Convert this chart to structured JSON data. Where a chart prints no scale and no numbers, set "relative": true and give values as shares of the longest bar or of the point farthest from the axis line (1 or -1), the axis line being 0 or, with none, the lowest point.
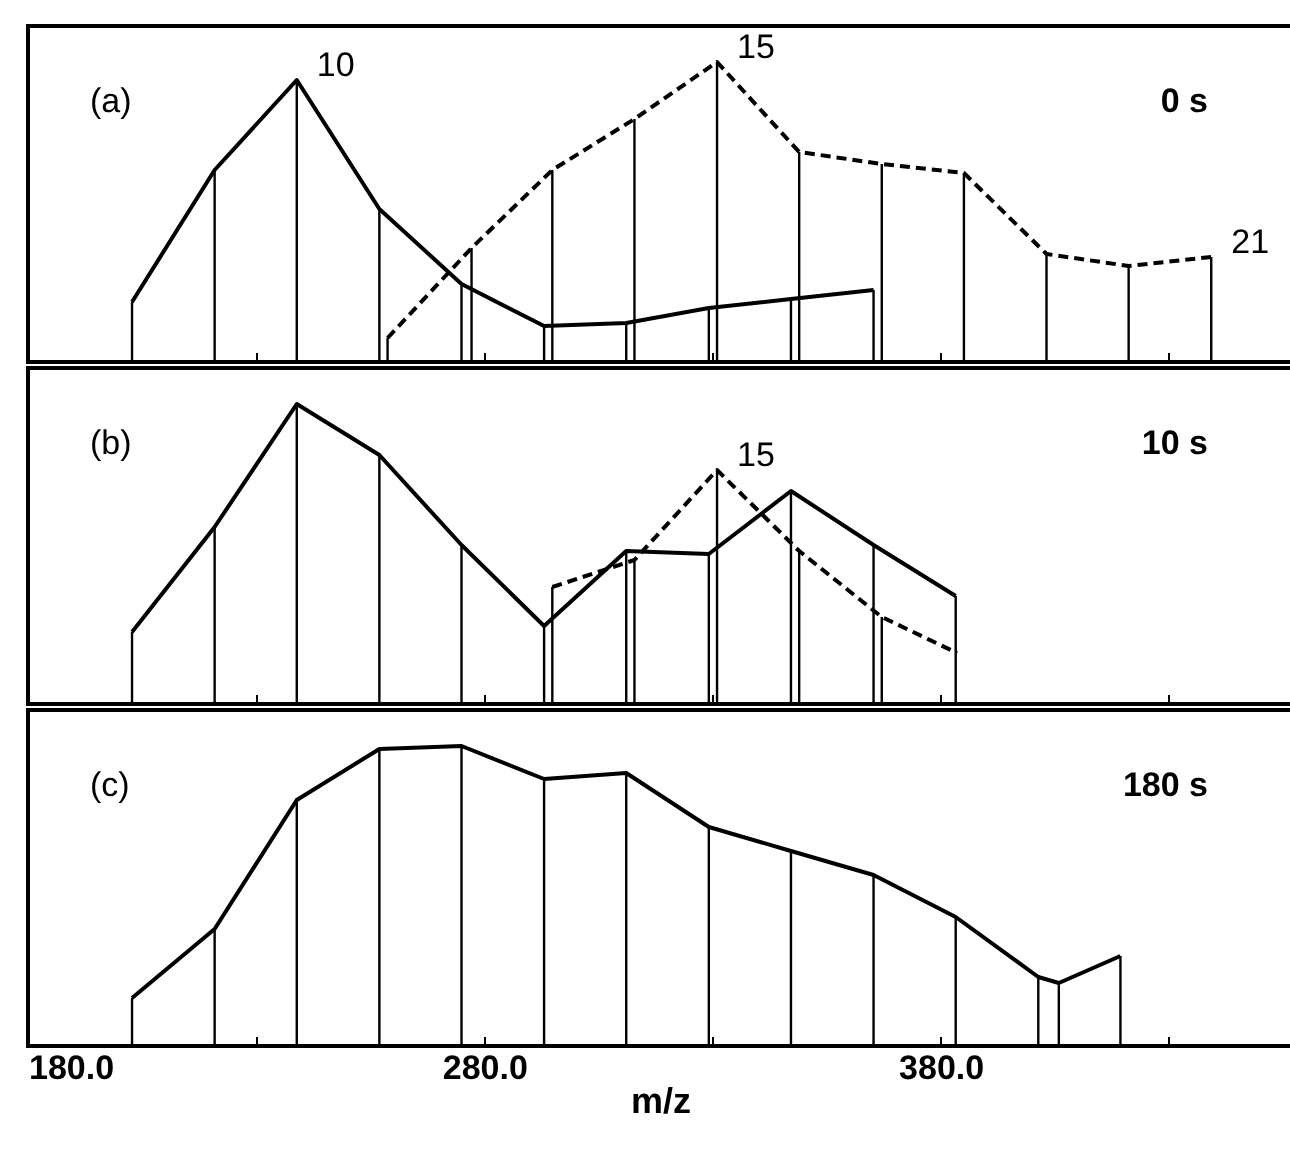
{
  "chart_data": [
    {
      "type": "line",
      "relative": true,
      "xlim": [
        180,
        457
      ],
      "xticks": [
        {
          "value": 180,
          "label": null
        },
        {
          "value": 230,
          "label": null
        },
        {
          "value": 280,
          "label": null
        },
        {
          "value": 330,
          "label": null
        },
        {
          "value": 380,
          "label": null
        },
        {
          "value": 430,
          "label": null
        }
      ],
      "tick_labels": false,
      "grid": false,
      "annotations": [
        "(a)",
        "0 s",
        {
          "text": "10",
          "x": 238.9,
          "y": 0.94
        },
        {
          "text": "15",
          "x": 331.0,
          "y": 1.0
        },
        {
          "text": "21",
          "x": 439.3,
          "y": 0.35
        }
      ],
      "series": [
        {
          "type": "bar",
          "color": "#000000",
          "x": [
            202.8,
            220.9,
            238.9,
            257.0,
            275.0,
            293.1,
            311.1,
            329.2,
            347.2,
            365.3
          ],
          "values": [
            0.2,
            0.64,
            0.94,
            0.51,
            0.26,
            0.12,
            0.13,
            0.18,
            0.21,
            0.24
          ]
        },
        {
          "type": "bar",
          "color": "#000000",
          "x": [
            258.8,
            277.2,
            294.9,
            312.9,
            331.0,
            349.0,
            367.1,
            385.1,
            403.2,
            421.2,
            439.3
          ],
          "values": [
            0.08,
            0.38,
            0.64,
            0.81,
            1.0,
            0.7,
            0.66,
            0.63,
            0.36,
            0.32,
            0.35
          ]
        },
        {
          "line_style": "solid",
          "color": "#000000",
          "x": [
            202.8,
            220.9,
            238.9,
            257.0,
            275.0,
            293.1,
            311.1,
            329.2,
            347.2,
            365.3
          ],
          "values": [
            0.2,
            0.64,
            0.94,
            0.51,
            0.26,
            0.12,
            0.13,
            0.18,
            0.21,
            0.24
          ]
        },
        {
          "line_style": "dashed",
          "color": "#000000",
          "x": [
            258.8,
            277.2,
            294.9,
            312.9,
            331.0,
            349.0,
            367.1,
            385.1,
            403.2,
            421.2,
            439.3
          ],
          "values": [
            0.08,
            0.38,
            0.64,
            0.81,
            1.0,
            0.7,
            0.66,
            0.63,
            0.36,
            0.32,
            0.35
          ]
        }
      ]
    },
    {
      "type": "line",
      "relative": true,
      "xlim": [
        180,
        457
      ],
      "xticks": [
        {
          "value": 180,
          "label": null
        },
        {
          "value": 230,
          "label": null
        },
        {
          "value": 280,
          "label": null
        },
        {
          "value": 330,
          "label": null
        },
        {
          "value": 380,
          "label": null
        },
        {
          "value": 430,
          "label": null
        }
      ],
      "tick_labels": false,
      "grid": false,
      "annotations": [
        "(b)",
        "10 s",
        {
          "text": "15",
          "x": 331.0,
          "y": 0.78
        }
      ],
      "series": [
        {
          "type": "bar",
          "color": "#000000",
          "x": [
            202.8,
            220.9,
            238.9,
            257.0,
            275.0,
            293.1,
            311.1,
            329.2,
            347.2,
            365.3,
            383.3
          ],
          "values": [
            0.24,
            0.59,
            1.0,
            0.83,
            0.53,
            0.26,
            0.51,
            0.5,
            0.71,
            0.53,
            0.36
          ]
        },
        {
          "type": "bar",
          "color": "#000000",
          "x": [
            294.9,
            312.9,
            331.0,
            349.0,
            367.1
          ],
          "values": [
            0.39,
            0.48,
            0.78,
            0.51,
            0.29
          ]
        },
        {
          "line_style": "solid",
          "color": "#000000",
          "x": [
            202.8,
            220.9,
            238.9,
            257.0,
            275.0,
            293.1,
            311.1,
            329.2,
            347.2,
            365.3,
            383.3
          ],
          "values": [
            0.24,
            0.59,
            1.0,
            0.83,
            0.53,
            0.26,
            0.51,
            0.5,
            0.71,
            0.53,
            0.36
          ]
        },
        {
          "line_style": "dashed",
          "color": "#000000",
          "x": [
            294.9,
            312.9,
            331.0,
            349.0,
            367.1,
            383.6
          ],
          "values": [
            0.39,
            0.48,
            0.78,
            0.51,
            0.29,
            0.17
          ]
        }
      ]
    },
    {
      "type": "line",
      "relative": true,
      "xlim": [
        180,
        457
      ],
      "xticks": [
        {
          "value": 180,
          "label": "180.0"
        },
        {
          "value": 230,
          "label": null
        },
        {
          "value": 280,
          "label": "280.0"
        },
        {
          "value": 330,
          "label": null
        },
        {
          "value": 380,
          "label": "380.0"
        },
        {
          "value": 430,
          "label": null
        }
      ],
      "tick_labels": "x",
      "xlabel": "m/z",
      "grid": false,
      "annotations": [
        "(c)",
        "180 s"
      ],
      "series": [
        {
          "type": "bar",
          "color": "#000000",
          "x": [
            202.8,
            220.9,
            238.9,
            257.0,
            275.0,
            293.1,
            311.1,
            329.2,
            347.2,
            365.3,
            383.3,
            401.4,
            405.9,
            419.4
          ],
          "values": [
            0.16,
            0.39,
            0.82,
            0.99,
            1.0,
            0.89,
            0.91,
            0.73,
            0.65,
            0.57,
            0.43,
            0.23,
            0.21,
            0.3
          ]
        },
        {
          "line_style": "solid",
          "color": "#000000",
          "x": [
            202.8,
            220.9,
            238.9,
            257.0,
            275.0,
            293.1,
            311.1,
            329.2,
            347.2,
            365.3,
            383.3,
            401.4,
            405.9,
            419.4
          ],
          "values": [
            0.16,
            0.39,
            0.82,
            0.99,
            1.0,
            0.89,
            0.91,
            0.73,
            0.65,
            0.57,
            0.43,
            0.23,
            0.21,
            0.3
          ]
        }
      ]
    }
  ]
}
